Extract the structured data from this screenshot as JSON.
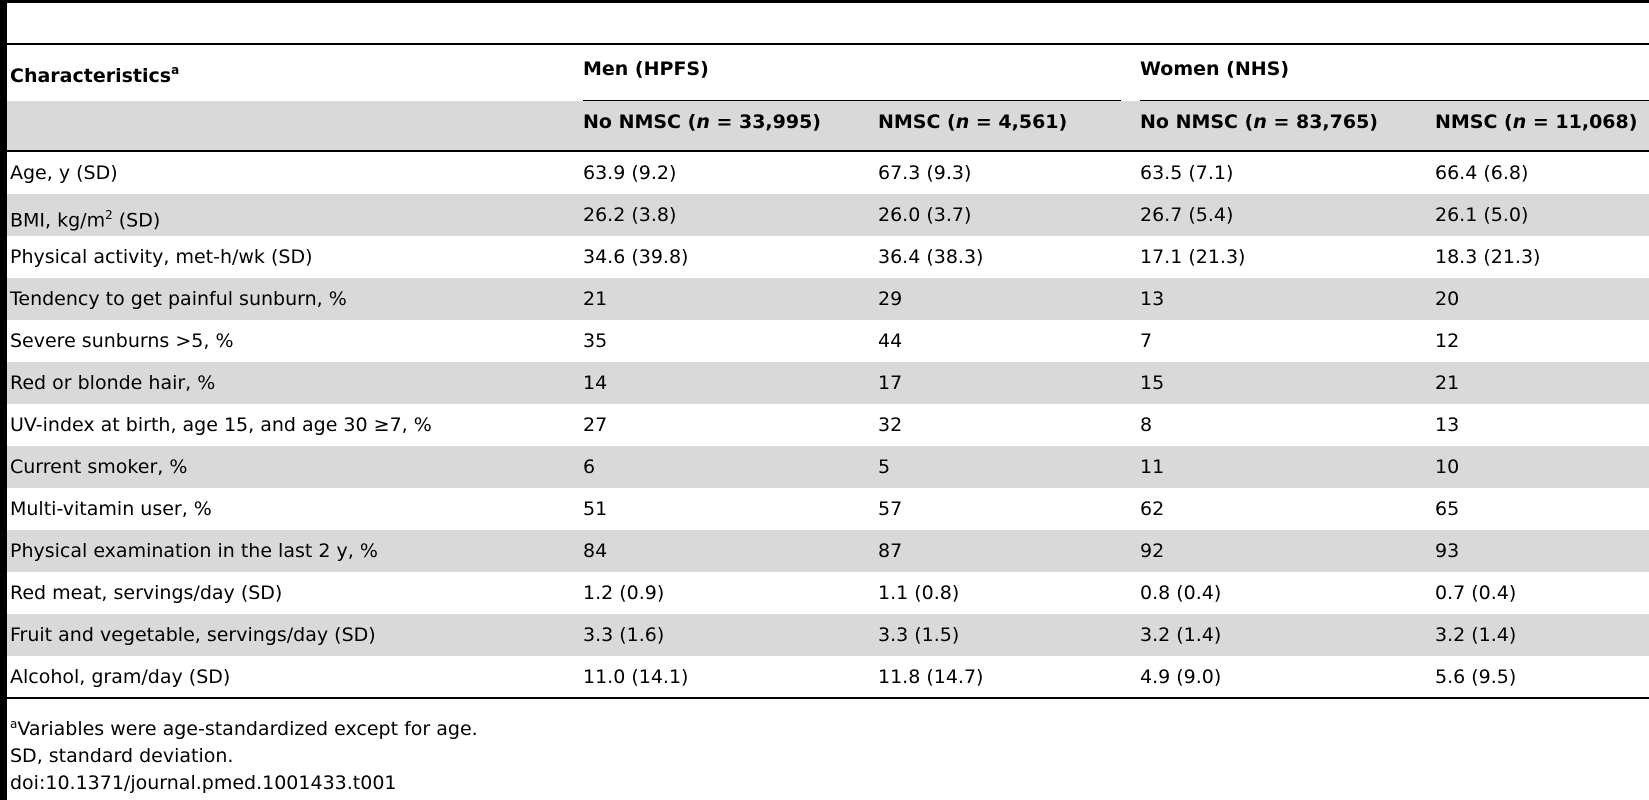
{
  "table": {
    "stub_header": "Characteristics",
    "stub_header_marker": "a",
    "groups": [
      {
        "label": "Men (HPFS)"
      },
      {
        "label": "Women (NHS)"
      }
    ],
    "subheaders": [
      {
        "prefix": "No NMSC (",
        "n_symbol": "n",
        "suffix": " = 33,995)"
      },
      {
        "prefix": "NMSC (",
        "n_symbol": "n",
        "suffix": " = 4,561)"
      },
      {
        "prefix": "No NMSC (",
        "n_symbol": "n",
        "suffix": " = 83,765)"
      },
      {
        "prefix": "NMSC (",
        "n_symbol": "n",
        "suffix": " = 11,068)"
      }
    ],
    "rows": [
      {
        "label": "Age, y (SD)",
        "values": [
          "63.9 (9.2)",
          "67.3 (9.3)",
          "63.5 (7.1)",
          "66.4 (6.8)"
        ]
      },
      {
        "label": "BMI, kg/m",
        "label_sup": "2",
        "label_after": " (SD)",
        "values": [
          "26.2 (3.8)",
          "26.0 (3.7)",
          "26.7 (5.4)",
          "26.1 (5.0)"
        ]
      },
      {
        "label": "Physical activity, met-h/wk (SD)",
        "values": [
          "34.6 (39.8)",
          "36.4 (38.3)",
          "17.1 (21.3)",
          "18.3 (21.3)"
        ]
      },
      {
        "label": "Tendency to get painful sunburn, %",
        "values": [
          "21",
          "29",
          "13",
          "20"
        ]
      },
      {
        "label": "Severe sunburns >5, %",
        "values": [
          "35",
          "44",
          "7",
          "12"
        ]
      },
      {
        "label": "Red or blonde hair, %",
        "values": [
          "14",
          "17",
          "15",
          "21"
        ]
      },
      {
        "label": "UV-index at birth, age 15, and age 30 ≥7, %",
        "values": [
          "27",
          "32",
          "8",
          "13"
        ]
      },
      {
        "label": "Current smoker, %",
        "values": [
          "6",
          "5",
          "11",
          "10"
        ]
      },
      {
        "label": "Multi-vitamin user, %",
        "values": [
          "51",
          "57",
          "62",
          "65"
        ]
      },
      {
        "label": "Physical examination in the last 2 y, %",
        "values": [
          "84",
          "87",
          "92",
          "93"
        ]
      },
      {
        "label": "Red meat, servings/day (SD)",
        "values": [
          "1.2 (0.9)",
          "1.1 (0.8)",
          "0.8 (0.4)",
          "0.7 (0.4)"
        ]
      },
      {
        "label": "Fruit and vegetable, servings/day (SD)",
        "values": [
          "3.3 (1.6)",
          "3.3 (1.5)",
          "3.2 (1.4)",
          "3.2 (1.4)"
        ]
      },
      {
        "label": "Alcohol, gram/day (SD)",
        "values": [
          "11.0 (14.1)",
          "11.8 (14.7)",
          "4.9 (9.0)",
          "5.6 (9.5)"
        ]
      }
    ]
  },
  "footnotes": {
    "marker": "a",
    "note": "Variables were age-standardized except for age.",
    "abbreviation": "SD, standard deviation.",
    "doi": "doi:10.1371/journal.pmed.1001433.t001"
  }
}
